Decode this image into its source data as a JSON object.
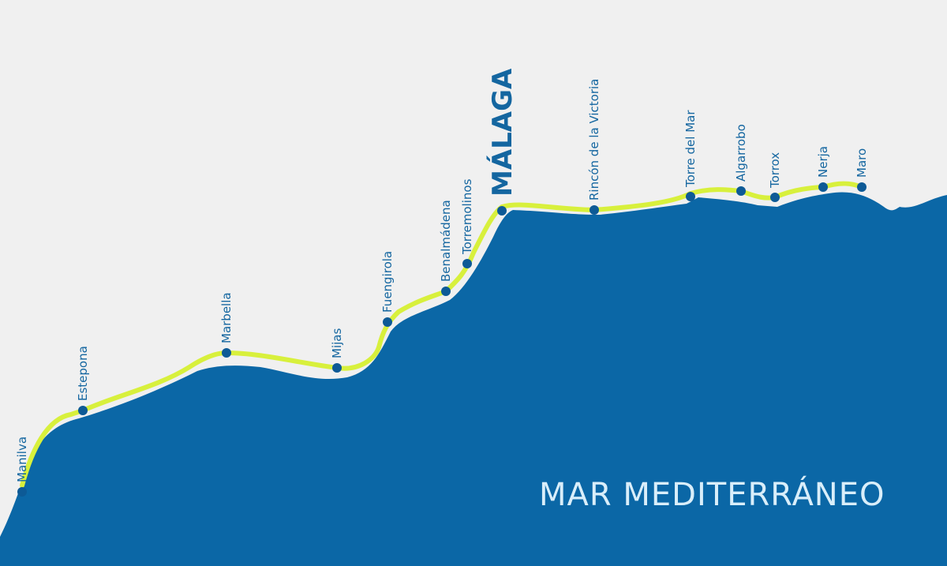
{
  "sea_label": "MAR MEDITERRÁNEO",
  "colors": {
    "background": "#f0f0f0",
    "sea": "#0b67a6",
    "route": "#d8f03c",
    "dot": "#0d5a96",
    "label": "#1466a0",
    "sea_label": "#d9eefa"
  },
  "towns": [
    {
      "name": "Manilva"
    },
    {
      "name": "Estepona"
    },
    {
      "name": "Marbella"
    },
    {
      "name": "Mijas"
    },
    {
      "name": "Fuengirola"
    },
    {
      "name": "Benalmádena"
    },
    {
      "name": "Torremolinos"
    },
    {
      "name": "MÁLAGA",
      "major": true
    },
    {
      "name": "Rincón de la Victoria"
    },
    {
      "name": "Torre del Mar"
    },
    {
      "name": "Algarrobo"
    },
    {
      "name": "Torrox"
    },
    {
      "name": "Nerja"
    },
    {
      "name": "Maro"
    }
  ]
}
